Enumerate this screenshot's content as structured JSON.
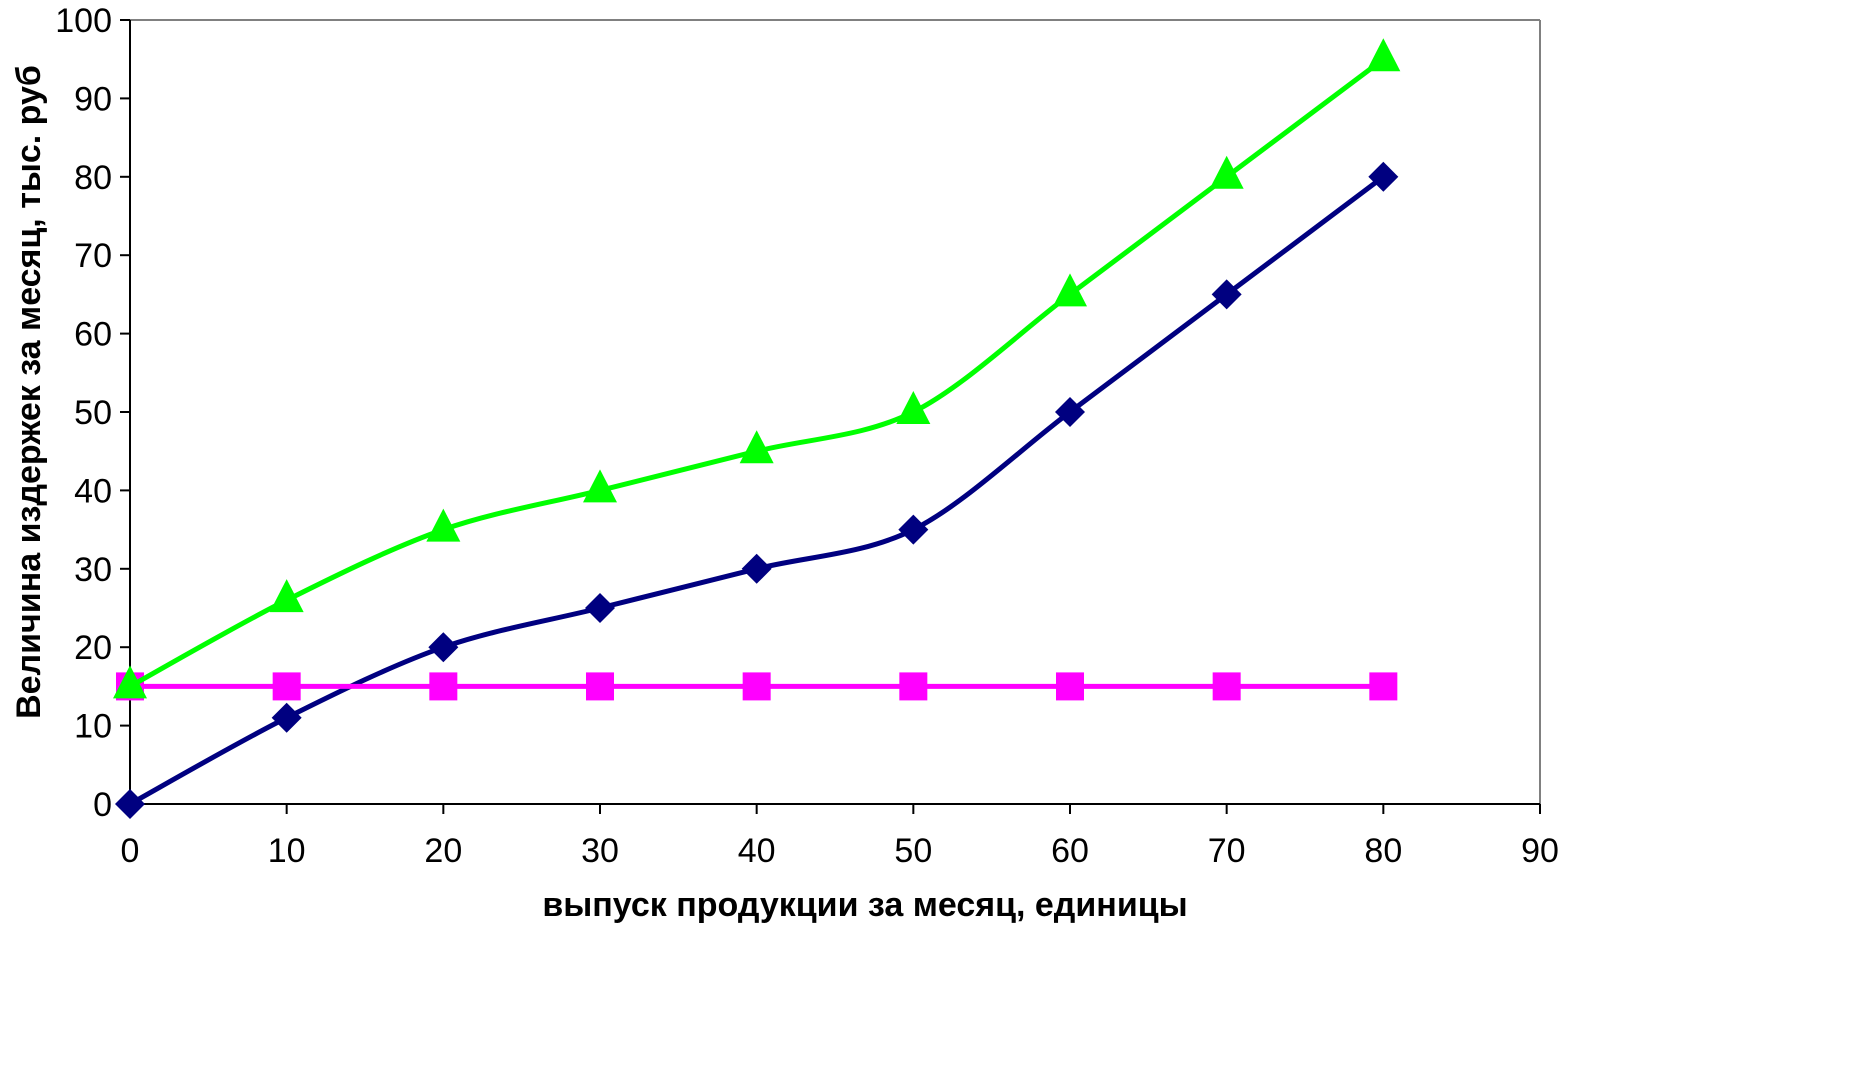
{
  "chart_data": {
    "type": "line",
    "title": "",
    "xlabel": "выпуск продукции за месяц, единицы",
    "ylabel": "Величина издержек за месяц, тыс. руб",
    "xlim": [
      0,
      90
    ],
    "ylim": [
      0,
      100
    ],
    "x_ticks": [
      0,
      10,
      20,
      30,
      40,
      50,
      60,
      70,
      80,
      90
    ],
    "y_ticks": [
      0,
      10,
      20,
      30,
      40,
      50,
      60,
      70,
      80,
      90,
      100
    ],
    "grid": false,
    "legend": "none",
    "x": [
      0,
      10,
      20,
      30,
      40,
      50,
      60,
      70,
      80
    ],
    "series": [
      {
        "values": [
          0,
          11,
          20,
          25,
          30,
          35,
          50,
          65,
          80
        ],
        "color": "#000080",
        "marker": "diamond"
      },
      {
        "values": [
          15,
          15,
          15,
          15,
          15,
          15,
          15,
          15,
          15
        ],
        "color": "#ff00ff",
        "marker": "square"
      },
      {
        "values": [
          15,
          26,
          35,
          40,
          45,
          50,
          65,
          80,
          95
        ],
        "color": "#00ff00",
        "marker": "triangle"
      }
    ]
  }
}
